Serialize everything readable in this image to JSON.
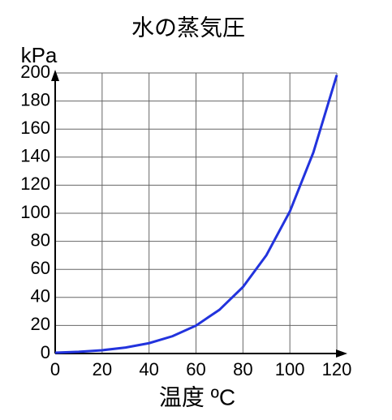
{
  "chart_data": {
    "type": "line",
    "title": "水の蒸気圧",
    "x_label": "温度 ºC",
    "y_label": "kPa",
    "x": [
      0,
      10,
      20,
      30,
      40,
      50,
      60,
      70,
      80,
      90,
      100,
      110,
      120
    ],
    "series": [
      {
        "name": "水の蒸気圧",
        "color": "#2233dd",
        "values": [
          0.61,
          1.23,
          2.34,
          4.25,
          7.38,
          12.35,
          19.9,
          31.2,
          47.4,
          70.1,
          101.3,
          143.3,
          198.5
        ]
      }
    ],
    "xlim": [
      0,
      120
    ],
    "xticks": [
      0,
      20,
      40,
      60,
      80,
      100,
      120
    ],
    "ylim": [
      0,
      200
    ],
    "yticks": [
      0,
      20,
      40,
      60,
      80,
      100,
      120,
      140,
      160,
      180,
      200
    ],
    "grid": true
  }
}
